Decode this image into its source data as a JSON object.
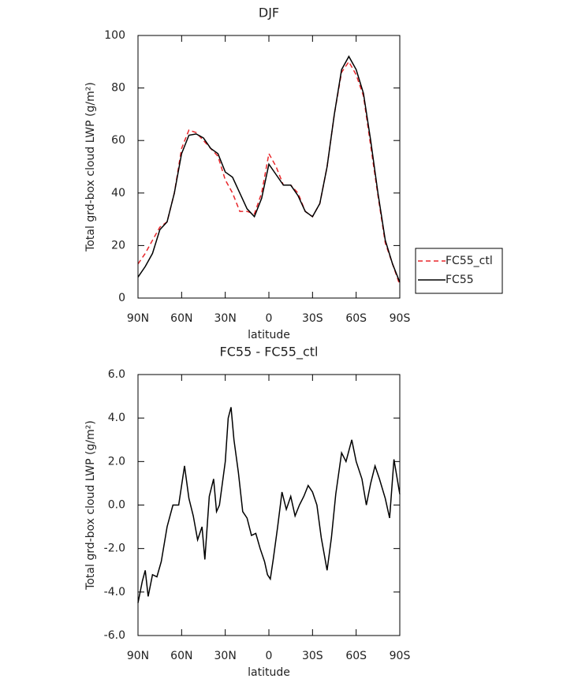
{
  "chart_data": [
    {
      "type": "line",
      "title": "DJF",
      "x_label": "latitude",
      "y_label": "Total grd-box cloud LWP (g/m²)",
      "x": [
        90,
        85,
        80,
        75,
        70,
        65,
        60,
        55,
        50,
        45,
        40,
        35,
        30,
        25,
        20,
        15,
        10,
        5,
        0,
        -5,
        -10,
        -15,
        -20,
        -25,
        -30,
        -35,
        -40,
        -45,
        -50,
        -55,
        -60,
        -65,
        -70,
        -75,
        -80,
        -85,
        -90
      ],
      "series": [
        {
          "name": "FC55_ctl",
          "color": "#e8262a",
          "dashed": true,
          "values": [
            13,
            17,
            22,
            27,
            29,
            40,
            57,
            64,
            63,
            60,
            57,
            54,
            45,
            40,
            33,
            33,
            32,
            40,
            55,
            50,
            43,
            43,
            40,
            33,
            31,
            36,
            50,
            70,
            86,
            90,
            85,
            77,
            58,
            39,
            21,
            13,
            5
          ]
        },
        {
          "name": "FC55",
          "color": "#000000",
          "dashed": false,
          "values": [
            8,
            12,
            17,
            26,
            29,
            40,
            55,
            62,
            62.5,
            61,
            57,
            55,
            48,
            46,
            40,
            34,
            31,
            38,
            51,
            47,
            43,
            43,
            39,
            33,
            31,
            36,
            50,
            70,
            87,
            92,
            87,
            78,
            60,
            40,
            22,
            13,
            6
          ]
        }
      ],
      "xlim": [
        90,
        -90
      ],
      "xticks": [
        {
          "value": 90,
          "label": "90N"
        },
        {
          "value": 60,
          "label": "60N"
        },
        {
          "value": 30,
          "label": "30N"
        },
        0,
        {
          "value": -30,
          "label": "30S"
        },
        {
          "value": -60,
          "label": "60S"
        },
        {
          "value": -90,
          "label": "90S"
        }
      ],
      "ylim": [
        0,
        100
      ],
      "yticks": [
        0,
        20,
        40,
        60,
        80,
        100
      ],
      "legend": "right"
    },
    {
      "type": "line",
      "title": "FC55 - FC55_ctl",
      "x_label": "latitude",
      "y_label": "Total grd-box cloud LWP (g/m²)",
      "x": [
        90,
        87,
        85,
        83,
        80,
        77,
        74,
        70,
        66,
        62,
        58,
        55,
        52,
        49,
        46,
        44,
        41,
        38,
        36,
        34,
        30,
        28,
        26,
        24,
        21,
        18,
        15,
        12,
        9,
        6,
        3,
        1,
        -1,
        -3,
        -6,
        -9,
        -12,
        -15,
        -18,
        -21,
        -24,
        -27,
        -30,
        -33,
        -36,
        -40,
        -43,
        -46,
        -50,
        -53,
        -57,
        -60,
        -64,
        -67,
        -70,
        -73,
        -76,
        -80,
        -83,
        -86,
        -90
      ],
      "series": [
        {
          "color": "#000000",
          "dashed": false,
          "values": [
            -4.5,
            -3.5,
            -3.0,
            -4.2,
            -3.2,
            -3.3,
            -2.6,
            -1.0,
            0.0,
            0.0,
            1.8,
            0.3,
            -0.5,
            -1.6,
            -1.0,
            -2.5,
            0.4,
            1.2,
            -0.3,
            0.0,
            2.0,
            4.0,
            4.5,
            3.0,
            1.5,
            -0.3,
            -0.6,
            -1.4,
            -1.3,
            -2.0,
            -2.6,
            -3.2,
            -3.4,
            -2.5,
            -1.0,
            0.6,
            -0.2,
            0.4,
            -0.5,
            0.0,
            0.4,
            0.9,
            0.6,
            0.0,
            -1.5,
            -3.0,
            -1.5,
            0.5,
            2.4,
            2.0,
            3.0,
            2.0,
            1.2,
            0.0,
            1.0,
            1.8,
            1.2,
            0.3,
            -0.6,
            2.1,
            0.5
          ]
        }
      ],
      "xlim": [
        90,
        -90
      ],
      "xticks": [
        {
          "value": 90,
          "label": "90N"
        },
        {
          "value": 60,
          "label": "60N"
        },
        {
          "value": 30,
          "label": "30N"
        },
        0,
        {
          "value": -30,
          "label": "30S"
        },
        {
          "value": -60,
          "label": "60S"
        },
        {
          "value": -90,
          "label": "90S"
        }
      ],
      "ylim": [
        -6,
        6
      ],
      "yticks": [
        {
          "value": -6,
          "label": "-6.0"
        },
        {
          "value": -4,
          "label": "-4.0"
        },
        {
          "value": -2,
          "label": "-2.0"
        },
        {
          "value": 0,
          "label": "0.0"
        },
        {
          "value": 2,
          "label": "2.0"
        },
        {
          "value": 4,
          "label": "4.0"
        },
        {
          "value": 6,
          "label": "6.0"
        }
      ]
    }
  ]
}
